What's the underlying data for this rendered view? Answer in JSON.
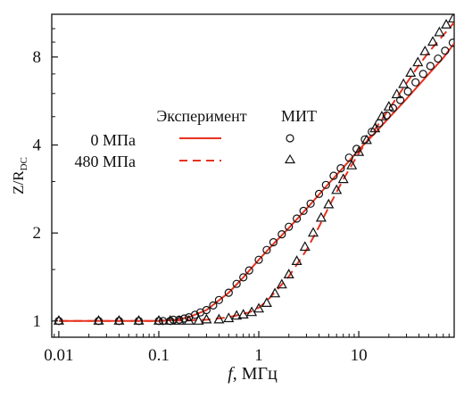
{
  "chart_data": {
    "type": "line",
    "xlabel": {
      "italic": "f",
      "rest": ", МГц"
    },
    "ylabel": {
      "main": "Z/R",
      "sub": "DC"
    },
    "xscale": "log",
    "yscale": "log",
    "xlim": [
      0.0085,
      90
    ],
    "ylim": [
      0.88,
      11.2
    ],
    "x_ticks": [
      {
        "value": 0.01,
        "label": "0.01"
      },
      {
        "value": 0.1,
        "label": "0.1"
      },
      {
        "value": 1,
        "label": "1"
      },
      {
        "value": 10,
        "label": "10"
      }
    ],
    "y_ticks": [
      {
        "value": 1,
        "label": "1"
      },
      {
        "value": 2,
        "label": "2"
      },
      {
        "value": 4,
        "label": "4"
      },
      {
        "value": 8,
        "label": "8"
      }
    ],
    "legend": {
      "col_experiment": "Эксперимент",
      "col_mit": "МИТ",
      "placement": "upper-left, inside plot"
    },
    "series": [
      {
        "name": "0 МПа",
        "color": "#e8321f",
        "line": "solid",
        "marker": "circle",
        "experiment": {
          "x": [
            0.01,
            0.05,
            0.1,
            0.15,
            0.2,
            0.3,
            0.5,
            0.7,
            1,
            1.5,
            2,
            3,
            5,
            7,
            10,
            15,
            20,
            30,
            50,
            70,
            90
          ],
          "y": [
            1.0,
            1.0,
            1.0,
            1.01,
            1.03,
            1.09,
            1.25,
            1.41,
            1.62,
            1.88,
            2.08,
            2.42,
            2.95,
            3.35,
            3.85,
            4.45,
            4.95,
            5.75,
            7.0,
            7.95,
            8.9
          ]
        },
        "mit": {
          "x": [
            0.01,
            0.025,
            0.04,
            0.063,
            0.1,
            0.11,
            0.13,
            0.14,
            0.16,
            0.18,
            0.2,
            0.23,
            0.26,
            0.3,
            0.35,
            0.4,
            0.5,
            0.6,
            0.7,
            0.8,
            1.0,
            1.2,
            1.4,
            1.7,
            2.0,
            2.4,
            2.8,
            3.3,
            4.0,
            4.7,
            5.6,
            6.6,
            8.0,
            9.5,
            11.5,
            13.5,
            16,
            19,
            22,
            26,
            31,
            37,
            44,
            52,
            62,
            73,
            87
          ],
          "y": [
            1.0,
            1.0,
            1.0,
            1.0,
            1.0,
            1.0,
            1.0,
            1.01,
            1.01,
            1.02,
            1.03,
            1.05,
            1.07,
            1.09,
            1.13,
            1.18,
            1.25,
            1.34,
            1.41,
            1.49,
            1.62,
            1.75,
            1.86,
            1.98,
            2.1,
            2.24,
            2.38,
            2.52,
            2.72,
            2.92,
            3.14,
            3.33,
            3.62,
            3.88,
            4.18,
            4.44,
            4.75,
            5.05,
            5.35,
            5.7,
            6.1,
            6.55,
            7.0,
            7.45,
            7.9,
            8.4,
            8.95
          ]
        }
      },
      {
        "name": "480 МПа",
        "color": "#e8321f",
        "line": "dashed",
        "marker": "triangle",
        "experiment": {
          "x": [
            0.01,
            0.1,
            0.3,
            0.5,
            0.8,
            1.0,
            1.2,
            1.5,
            2,
            3,
            4,
            5,
            7,
            10,
            15,
            20,
            30,
            40,
            50,
            70,
            90
          ],
          "y": [
            1.0,
            1.0,
            1.01,
            1.03,
            1.07,
            1.11,
            1.17,
            1.27,
            1.42,
            1.75,
            2.1,
            2.45,
            3.05,
            3.75,
            4.6,
            5.3,
            6.5,
            7.5,
            8.3,
            9.5,
            10.5
          ]
        },
        "mit": {
          "x": [
            0.01,
            0.025,
            0.04,
            0.063,
            0.1,
            0.13,
            0.16,
            0.2,
            0.25,
            0.3,
            0.4,
            0.5,
            0.6,
            0.7,
            0.85,
            1.0,
            1.2,
            1.45,
            1.7,
            2.0,
            2.4,
            2.9,
            3.5,
            4.2,
            5.0,
            6.0,
            7.0,
            8.5,
            10,
            12,
            14.5,
            17,
            20,
            24,
            28,
            33,
            39,
            46,
            55,
            64,
            75,
            88
          ],
          "y": [
            1.0,
            1.0,
            1.0,
            1.0,
            1.0,
            1.0,
            1.0,
            1.0,
            1.0,
            1.01,
            1.01,
            1.02,
            1.04,
            1.05,
            1.07,
            1.1,
            1.15,
            1.24,
            1.33,
            1.44,
            1.6,
            1.79,
            2.0,
            2.25,
            2.5,
            2.8,
            3.05,
            3.4,
            3.78,
            4.15,
            4.55,
            5.0,
            5.4,
            5.95,
            6.45,
            7.05,
            7.65,
            8.35,
            9.0,
            9.7,
            10.3,
            10.8
          ]
        }
      }
    ]
  }
}
